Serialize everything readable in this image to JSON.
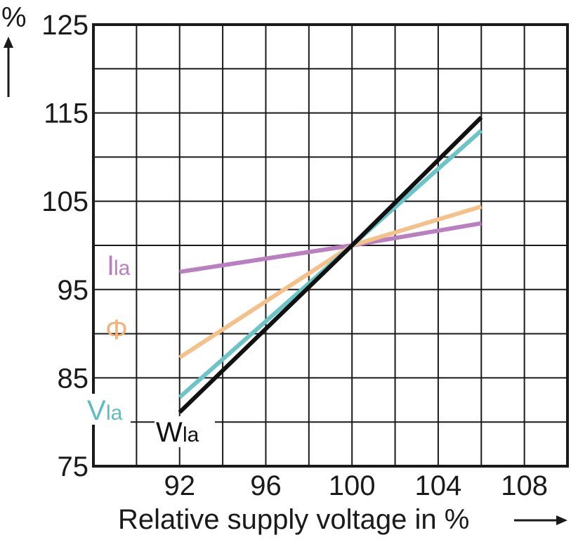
{
  "chart_data": {
    "type": "line",
    "title": "",
    "xlabel": "Relative supply voltage in %",
    "ylabel": "%",
    "xlim": [
      88,
      110
    ],
    "ylim": [
      75,
      125
    ],
    "x_ticks": [
      92,
      96,
      100,
      104,
      108
    ],
    "y_ticks": [
      75,
      85,
      95,
      105,
      115,
      125
    ],
    "grid": true,
    "series": [
      {
        "name": "Ila",
        "label_main": "I",
        "label_sub": "la",
        "color": "#b97fc0",
        "x": [
          92,
          100,
          106
        ],
        "y": [
          97,
          100,
          102.5
        ]
      },
      {
        "name": "Φ",
        "label_main": "Φ",
        "label_sub": "",
        "color": "#f5c18a",
        "x": [
          92,
          100,
          106
        ],
        "y": [
          87.3,
          100,
          104.4
        ]
      },
      {
        "name": "Vla",
        "label_main": "V",
        "label_sub": "la",
        "color": "#6cc4c6",
        "x": [
          92,
          100,
          106
        ],
        "y": [
          82.8,
          100,
          113
        ]
      },
      {
        "name": "Wla",
        "label_main": "W",
        "label_sub": "la",
        "color": "#111111",
        "x": [
          92,
          100,
          106
        ],
        "y": [
          81.1,
          100,
          114.5
        ]
      }
    ]
  }
}
